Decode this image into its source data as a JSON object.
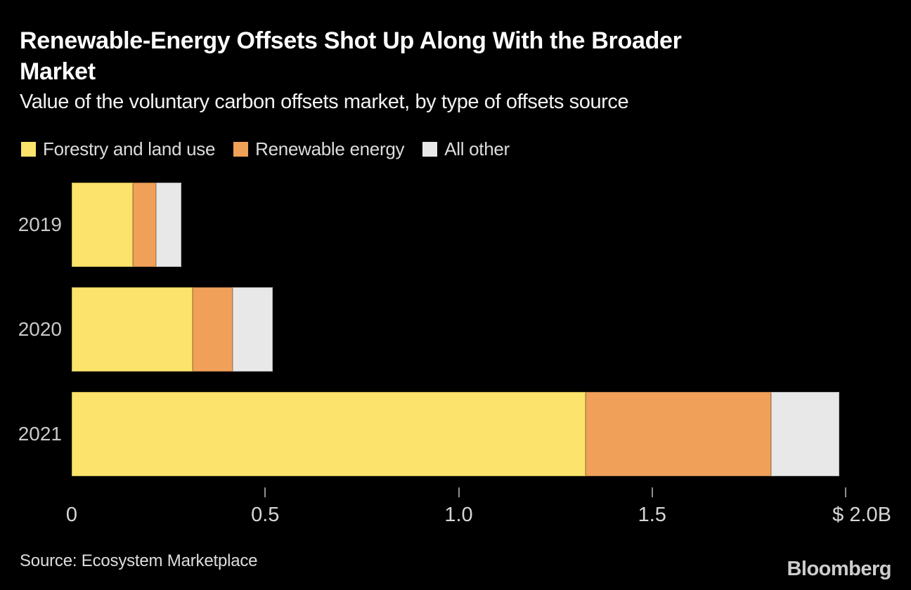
{
  "header": {
    "title": "Renewable-Energy Offsets Shot Up Along With the Broader\nMarket",
    "subtitle": "Value of the voluntary carbon offsets market, by type of offsets source"
  },
  "chart_data": {
    "type": "bar",
    "orientation": "horizontal",
    "stacked": true,
    "grid": false,
    "legend_position": "top",
    "title": "Renewable-Energy Offsets Shot Up Along With the Broader Market",
    "subtitle": "Value of the voluntary carbon offsets market, by type of offsets source",
    "unit": "billion USD",
    "categories": [
      "2019",
      "2020",
      "2021"
    ],
    "series": [
      {
        "name": "Forestry and land use",
        "color": "#FCE36B",
        "values": [
          0.158,
          0.313,
          1.328
        ]
      },
      {
        "name": "Renewable energy",
        "color": "#F0A058",
        "values": [
          0.06,
          0.103,
          0.48
        ]
      },
      {
        "name": "All other",
        "color": "#E8E8E8",
        "values": [
          0.065,
          0.103,
          0.176
        ]
      }
    ],
    "totals": [
      0.283,
      0.519,
      1.984
    ],
    "xlabel": "",
    "ylabel": "",
    "xlim": [
      0,
      2.0
    ],
    "x_ticks": [
      {
        "value": 0,
        "label": "0",
        "has_mark": false
      },
      {
        "value": 0.5,
        "label": "0.5",
        "has_mark": true
      },
      {
        "value": 1.0,
        "label": "1.0",
        "has_mark": true
      },
      {
        "value": 1.5,
        "label": "1.5",
        "has_mark": true
      },
      {
        "value": 2.0,
        "label": "$ 2.0B",
        "has_mark": true
      }
    ]
  },
  "footer": {
    "source": "Source: Ecosystem Marketplace",
    "logo": "Bloomberg"
  },
  "colors": {
    "background": "#000000",
    "title_text": "#FFFFFF",
    "subtitle_text": "#F2F2F2",
    "legend_text": "#DCDCDC",
    "category_label_text": "#C9C9C9",
    "axis_label_text": "#D6D6D6",
    "tick_mark": "#8F8F8F",
    "source_text": "#DEDEDE",
    "logo_text": "#CDCDCD"
  }
}
